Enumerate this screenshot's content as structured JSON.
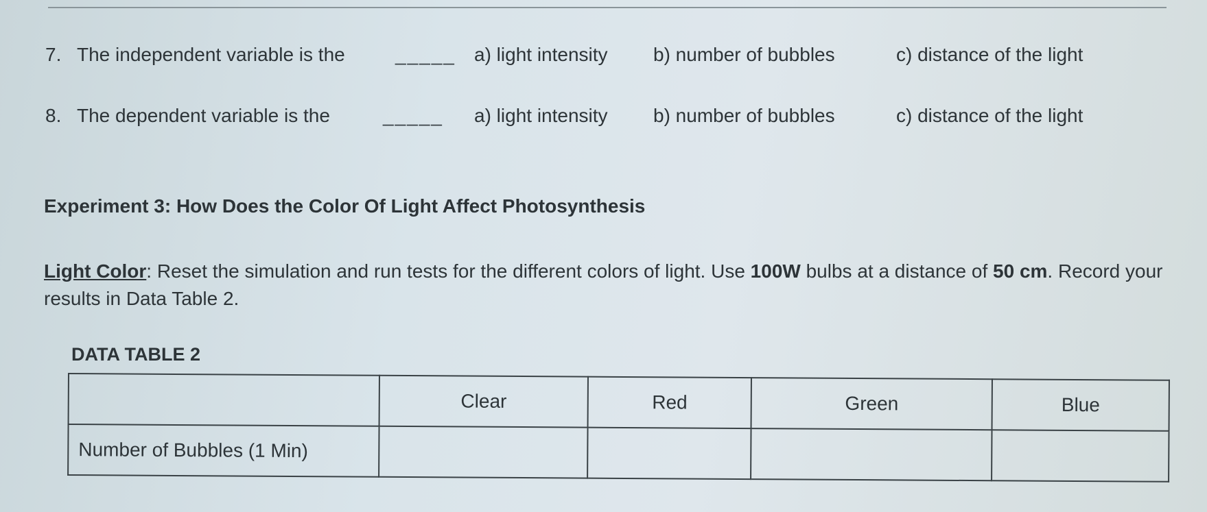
{
  "questions": [
    {
      "number": "7.",
      "text": "The independent variable is the",
      "blank": "_____",
      "options": [
        "a) light intensity",
        "b) number of bubbles",
        "c) distance of the light"
      ]
    },
    {
      "number": "8.",
      "text": "The dependent variable is the",
      "blank": "_____",
      "options": [
        "a) light intensity",
        "b) number of bubbles",
        "c) distance of the light"
      ]
    }
  ],
  "experiment": {
    "heading": "Experiment 3:  How Does the Color Of Light Affect Photosynthesis",
    "label": "Light Color",
    "instructions_1": ": Reset the simulation and run tests for the different colors of light. Use ",
    "bold_1": "100W",
    "instructions_2": " bulbs at a distance of ",
    "bold_2": "50 cm",
    "instructions_3": ". Record your results in Data Table 2."
  },
  "table": {
    "title": "DATA TABLE 2",
    "headers": [
      "",
      "Clear",
      "Red",
      "Green",
      "Blue"
    ],
    "rows": [
      {
        "label": "Number of Bubbles  (1 Min)",
        "values": [
          "",
          "",
          "",
          ""
        ]
      }
    ]
  }
}
